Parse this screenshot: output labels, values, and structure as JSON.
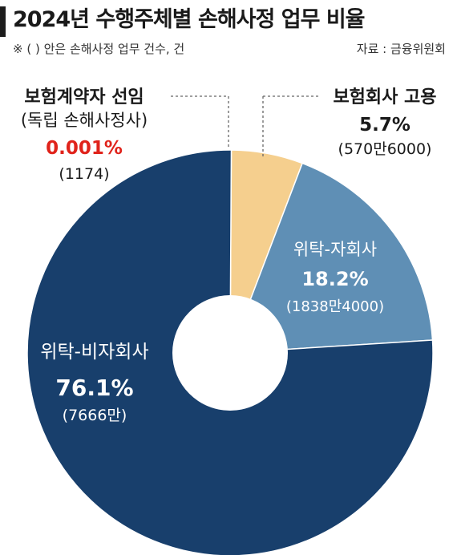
{
  "title": "2024년 수행주체별 손해사정 업무 비율",
  "note": "※ (  ) 안은 손해사정 업무 건수, 건",
  "source": "자료 : 금융위원회",
  "chart_data": {
    "type": "pie",
    "donut": true,
    "slices": [
      {
        "name_line1": "보험계약자 선임",
        "name_line2": "(독립 손해사정사)",
        "value": 0.001,
        "value_label": "0.001%",
        "count_label": "(1174)",
        "color": "#e23b2e"
      },
      {
        "name_line1": "보험회사 고용",
        "name_line2": "",
        "value": 5.7,
        "value_label": "5.7%",
        "count_label": "(570만6000)",
        "color": "#f5cf8e"
      },
      {
        "name_line1": "위탁-자회사",
        "name_line2": "",
        "value": 18.2,
        "value_label": "18.2%",
        "count_label": "(1838만4000)",
        "color": "#5f8fb5"
      },
      {
        "name_line1": "위탁-비자회사",
        "name_line2": "",
        "value": 76.1,
        "value_label": "76.1%",
        "count_label": "(7666만)",
        "color": "#183f6c"
      }
    ]
  }
}
